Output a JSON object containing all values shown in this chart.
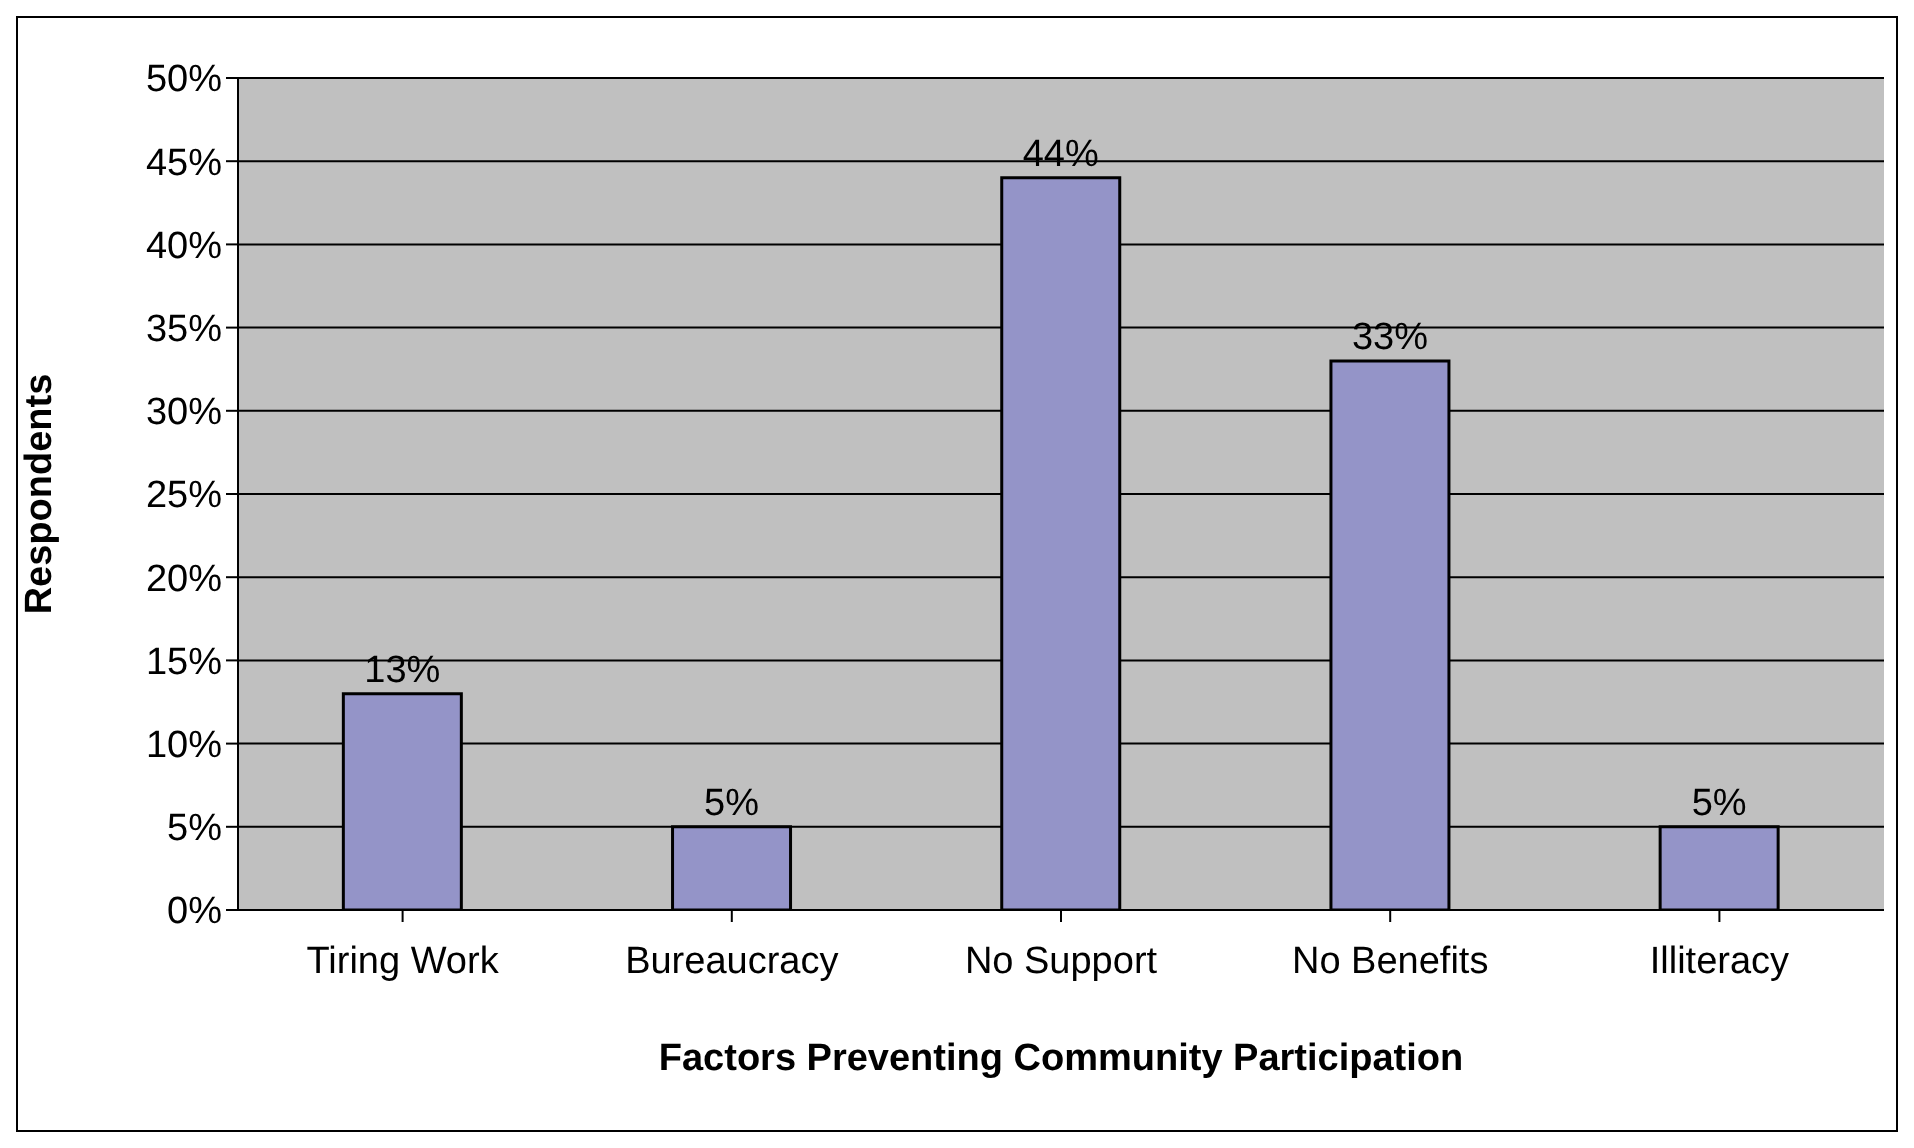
{
  "chart_data": {
    "type": "bar",
    "xlabel": "Factors Preventing Community Participation",
    "ylabel": "Respondents",
    "categories": [
      "Tiring Work",
      "Bureaucracy",
      "No Support",
      "No Benefits",
      "Illiteracy"
    ],
    "values": [
      13,
      5,
      44,
      33,
      5
    ],
    "value_labels": [
      "13%",
      "5%",
      "44%",
      "33%",
      "5%"
    ],
    "color": "#9494c8",
    "ylim": [
      0,
      50
    ],
    "yticks": [
      {
        "value": 0,
        "label": "0%"
      },
      {
        "value": 5,
        "label": "5%"
      },
      {
        "value": 10,
        "label": "10%"
      },
      {
        "value": 15,
        "label": "15%"
      },
      {
        "value": 20,
        "label": "20%"
      },
      {
        "value": 25,
        "label": "25%"
      },
      {
        "value": 30,
        "label": "30%"
      },
      {
        "value": 35,
        "label": "35%"
      },
      {
        "value": 40,
        "label": "40%"
      },
      {
        "value": 45,
        "label": "45%"
      },
      {
        "value": 50,
        "label": "50%"
      }
    ],
    "grid": "y",
    "legend": false
  }
}
